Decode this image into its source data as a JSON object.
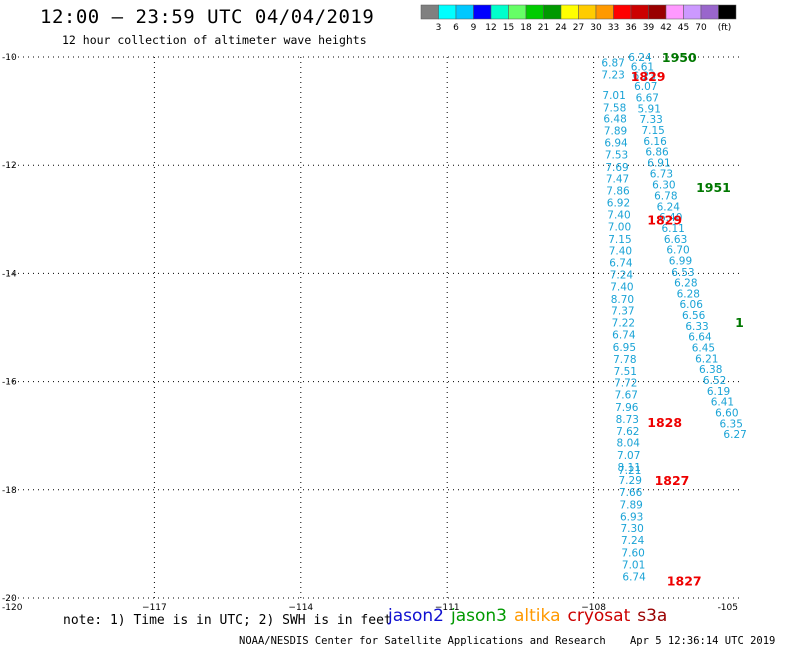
{
  "header": {
    "title": "12:00 – 23:59 UTC 04/04/2019",
    "subtitle": "12 hour collection of altimeter wave heights"
  },
  "color_scale": {
    "labels": [
      "3",
      "6",
      "9",
      "12",
      "15",
      "18",
      "21",
      "24",
      "27",
      "30",
      "33",
      "36",
      "39",
      "42",
      "45",
      "70"
    ],
    "unit": "(ft)",
    "colors": [
      "#808080",
      "#00ffff",
      "#00c8ff",
      "#0000ff",
      "#00ffcc",
      "#66ff66",
      "#00cc00",
      "#009900",
      "#ffff00",
      "#ffcc00",
      "#ff9900",
      "#ff0000",
      "#cc0000",
      "#990000",
      "#ff99ff",
      "#cc99ff",
      "#9966cc",
      "#000000"
    ]
  },
  "chart_data": {
    "type": "scatter",
    "xlim": [
      -120,
      -105
    ],
    "ylim": [
      -20,
      -10
    ],
    "x_ticks": [
      -120,
      -117,
      -114,
      -111,
      -108,
      -105
    ],
    "x_tick_labels": [
      "-120",
      "−117",
      "−114",
      "−111",
      "−108",
      "-105"
    ],
    "y_ticks": [
      -10,
      -12,
      -14,
      -16,
      -18,
      -20
    ],
    "y_tick_labels": [
      "-10",
      "-12",
      "-14",
      "-16",
      "-18",
      "-20"
    ],
    "grid": true,
    "series": [
      {
        "color": "#1aa3d6",
        "points": [
          {
            "lon": -107.6,
            "lat": -10.1,
            "value": "6.87"
          },
          {
            "lon": -107.6,
            "lat": -10.32,
            "value": "7.23"
          },
          {
            "lon": -107.58,
            "lat": -10.7,
            "value": "7.01"
          },
          {
            "lon": -107.57,
            "lat": -10.93,
            "value": "7.58"
          },
          {
            "lon": -107.56,
            "lat": -11.14,
            "value": "6.48"
          },
          {
            "lon": -107.55,
            "lat": -11.36,
            "value": "7.89"
          },
          {
            "lon": -107.54,
            "lat": -11.58,
            "value": "6.94"
          },
          {
            "lon": -107.53,
            "lat": -11.8,
            "value": "7.53"
          },
          {
            "lon": -107.52,
            "lat": -12.03,
            "value": "7.69"
          },
          {
            "lon": -107.51,
            "lat": -12.25,
            "value": "7.47"
          },
          {
            "lon": -107.5,
            "lat": -12.47,
            "value": "7.86"
          },
          {
            "lon": -107.49,
            "lat": -12.69,
            "value": "6.92"
          },
          {
            "lon": -107.48,
            "lat": -12.91,
            "value": "7.40"
          },
          {
            "lon": -107.47,
            "lat": -13.13,
            "value": "7.00"
          },
          {
            "lon": -107.46,
            "lat": -13.36,
            "value": "7.15"
          },
          {
            "lon": -107.45,
            "lat": -13.58,
            "value": "7.40"
          },
          {
            "lon": -107.44,
            "lat": -13.8,
            "value": "6.74"
          },
          {
            "lon": -107.43,
            "lat": -14.02,
            "value": "7.24"
          },
          {
            "lon": -107.42,
            "lat": -14.24,
            "value": "7.40"
          },
          {
            "lon": -107.41,
            "lat": -14.47,
            "value": "8.70"
          },
          {
            "lon": -107.4,
            "lat": -14.69,
            "value": "7.37"
          },
          {
            "lon": -107.39,
            "lat": -14.91,
            "value": "7.22"
          },
          {
            "lon": -107.38,
            "lat": -15.13,
            "value": "6.74"
          },
          {
            "lon": -107.37,
            "lat": -15.36,
            "value": "6.95"
          },
          {
            "lon": -107.36,
            "lat": -15.58,
            "value": "7.78"
          },
          {
            "lon": -107.35,
            "lat": -15.8,
            "value": "7.51"
          },
          {
            "lon": -107.34,
            "lat": -16.02,
            "value": "7.72"
          },
          {
            "lon": -107.33,
            "lat": -16.24,
            "value": "7.67"
          },
          {
            "lon": -107.32,
            "lat": -16.47,
            "value": "7.96"
          },
          {
            "lon": -107.31,
            "lat": -16.69,
            "value": "8.73"
          },
          {
            "lon": -107.3,
            "lat": -16.91,
            "value": "7.62"
          },
          {
            "lon": -107.29,
            "lat": -17.13,
            "value": "8.04"
          },
          {
            "lon": -107.28,
            "lat": -17.36,
            "value": "7.07"
          },
          {
            "lon": -107.27,
            "lat": -17.58,
            "value": "8.11"
          },
          {
            "lon": -107.26,
            "lat": -17.63,
            "value": "7.21"
          },
          {
            "lon": -107.25,
            "lat": -17.82,
            "value": "7.29"
          },
          {
            "lon": -107.24,
            "lat": -18.04,
            "value": "7.66"
          },
          {
            "lon": -107.23,
            "lat": -18.27,
            "value": "7.89"
          },
          {
            "lon": -107.22,
            "lat": -18.49,
            "value": "6.93"
          },
          {
            "lon": -107.21,
            "lat": -18.71,
            "value": "7.30"
          },
          {
            "lon": -107.2,
            "lat": -18.93,
            "value": "7.24"
          },
          {
            "lon": -107.19,
            "lat": -19.16,
            "value": "7.60"
          },
          {
            "lon": -107.18,
            "lat": -19.38,
            "value": "7.01"
          },
          {
            "lon": -107.17,
            "lat": -19.6,
            "value": "6.74"
          }
        ]
      },
      {
        "color": "#1aa3d6",
        "points": [
          {
            "lon": -107.05,
            "lat": -10.0,
            "value": "6.24"
          },
          {
            "lon": -107.0,
            "lat": -10.18,
            "value": "6.61"
          },
          {
            "lon": -106.96,
            "lat": -10.34,
            "value": "6.23"
          },
          {
            "lon": -106.93,
            "lat": -10.54,
            "value": "6.07"
          },
          {
            "lon": -106.9,
            "lat": -10.75,
            "value": "6.67"
          },
          {
            "lon": -106.86,
            "lat": -10.95,
            "value": "5.91"
          },
          {
            "lon": -106.82,
            "lat": -11.15,
            "value": "7.33"
          },
          {
            "lon": -106.78,
            "lat": -11.35,
            "value": "7.15"
          },
          {
            "lon": -106.74,
            "lat": -11.55,
            "value": "6.16"
          },
          {
            "lon": -106.7,
            "lat": -11.75,
            "value": "6.86"
          },
          {
            "lon": -106.66,
            "lat": -11.95,
            "value": "6.91"
          },
          {
            "lon": -106.61,
            "lat": -12.15,
            "value": "6.73"
          },
          {
            "lon": -106.56,
            "lat": -12.36,
            "value": "6.30"
          },
          {
            "lon": -106.52,
            "lat": -12.56,
            "value": "6.78"
          },
          {
            "lon": -106.47,
            "lat": -12.76,
            "value": "6.24"
          },
          {
            "lon": -106.42,
            "lat": -12.96,
            "value": "6.40"
          },
          {
            "lon": -106.37,
            "lat": -13.16,
            "value": "6.11"
          },
          {
            "lon": -106.32,
            "lat": -13.36,
            "value": "6.63"
          },
          {
            "lon": -106.27,
            "lat": -13.56,
            "value": "6.70"
          },
          {
            "lon": -106.22,
            "lat": -13.76,
            "value": "6.99"
          },
          {
            "lon": -106.17,
            "lat": -13.97,
            "value": "6.53"
          },
          {
            "lon": -106.11,
            "lat": -14.17,
            "value": "6.28"
          },
          {
            "lon": -106.06,
            "lat": -14.37,
            "value": "6.28"
          },
          {
            "lon": -106.0,
            "lat": -14.57,
            "value": "6.06"
          },
          {
            "lon": -105.95,
            "lat": -14.77,
            "value": "6.56"
          },
          {
            "lon": -105.88,
            "lat": -14.97,
            "value": "6.33"
          },
          {
            "lon": -105.82,
            "lat": -15.17,
            "value": "6.64"
          },
          {
            "lon": -105.75,
            "lat": -15.37,
            "value": "6.45"
          },
          {
            "lon": -105.68,
            "lat": -15.57,
            "value": "6.21"
          },
          {
            "lon": -105.6,
            "lat": -15.77,
            "value": "6.38"
          },
          {
            "lon": -105.52,
            "lat": -15.97,
            "value": "6.52"
          },
          {
            "lon": -105.44,
            "lat": -16.17,
            "value": "6.19"
          },
          {
            "lon": -105.36,
            "lat": -16.37,
            "value": "6.41"
          },
          {
            "lon": -105.27,
            "lat": -16.57,
            "value": "6.60"
          },
          {
            "lon": -105.18,
            "lat": -16.77,
            "value": "6.35"
          },
          {
            "lon": -105.1,
            "lat": -16.97,
            "value": "6.27"
          }
        ]
      }
    ],
    "time_labels": [
      {
        "lon": -106.6,
        "lat": -10.0,
        "text": "1950",
        "color": "#007700"
      },
      {
        "lon": -107.24,
        "lat": -10.35,
        "text": "1829",
        "color": "#ee0000"
      },
      {
        "lon": -105.9,
        "lat": -12.4,
        "text": "1951",
        "color": "#007700"
      },
      {
        "lon": -106.9,
        "lat": -13.0,
        "text": "1829",
        "color": "#ee0000"
      },
      {
        "lon": -106.9,
        "lat": -16.75,
        "text": "1828",
        "color": "#ee0000"
      },
      {
        "lon": -106.75,
        "lat": -17.82,
        "text": "1827",
        "color": "#ee0000"
      },
      {
        "lon": -106.5,
        "lat": -19.68,
        "text": "1827",
        "color": "#ee0000"
      },
      {
        "lon": -105.1,
        "lat": -14.9,
        "text": "1",
        "color": "#007700"
      }
    ]
  },
  "note": "note: 1) Time is in UTC; 2) SWH is in feet",
  "satellites": [
    {
      "name": "jason2",
      "color": "#1010d0"
    },
    {
      "name": "jason3",
      "color": "#009900"
    },
    {
      "name": "altika",
      "color": "#ff9900"
    },
    {
      "name": "cryosat",
      "color": "#cc0000"
    },
    {
      "name": "s3a",
      "color": "#990000"
    }
  ],
  "footer": {
    "credit": "NOAA/NESDIS Center for Satellite Applications and Research",
    "timestamp": "Apr  5 12:36:14 UTC 2019"
  }
}
